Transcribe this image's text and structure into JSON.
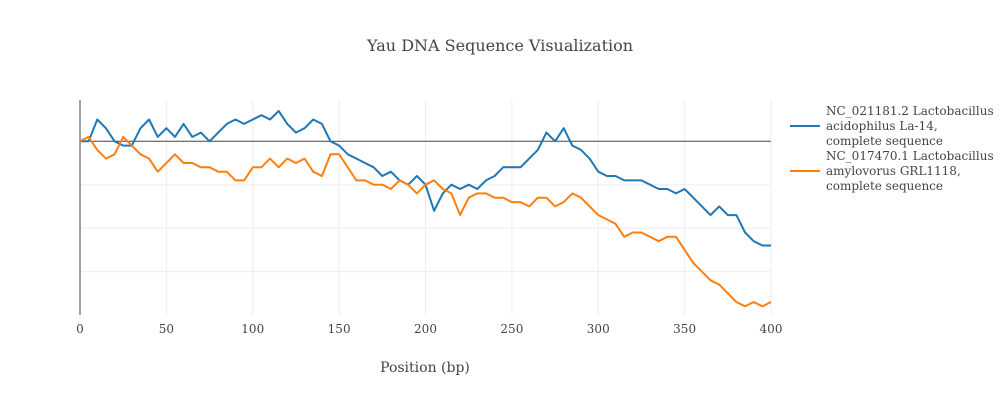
{
  "chart_data": {
    "type": "line",
    "title": "Yau DNA Sequence Visualization",
    "xlabel": "Position (bp)",
    "ylabel": "",
    "xlim": [
      0,
      400
    ],
    "ylim": [
      -40,
      9.5
    ],
    "x_ticks": [
      0,
      50,
      100,
      150,
      200,
      250,
      300,
      350,
      400
    ],
    "grid": true,
    "legend_position": "right",
    "series": [
      {
        "name": "NC_021181.2 Lactobacillus acidophilus La-14, complete sequence",
        "legend_lines": [
          "NC_021181.2 Lactobacillus",
          "acidophilus La-14,",
          "complete sequence"
        ],
        "color": "#1f77b4",
        "points": [
          [
            0,
            0
          ],
          [
            5,
            0
          ],
          [
            10,
            5
          ],
          [
            15,
            3
          ],
          [
            20,
            0
          ],
          [
            25,
            -1
          ],
          [
            30,
            -1
          ],
          [
            35,
            3
          ],
          [
            40,
            5
          ],
          [
            45,
            1
          ],
          [
            50,
            3
          ],
          [
            55,
            1
          ],
          [
            60,
            4
          ],
          [
            65,
            1
          ],
          [
            70,
            2
          ],
          [
            75,
            0
          ],
          [
            80,
            2
          ],
          [
            85,
            4
          ],
          [
            90,
            5
          ],
          [
            95,
            4
          ],
          [
            100,
            5
          ],
          [
            105,
            6
          ],
          [
            110,
            5
          ],
          [
            115,
            7
          ],
          [
            120,
            4
          ],
          [
            125,
            2
          ],
          [
            130,
            3
          ],
          [
            135,
            5
          ],
          [
            140,
            4
          ],
          [
            145,
            0
          ],
          [
            150,
            -1
          ],
          [
            155,
            -3
          ],
          [
            160,
            -4
          ],
          [
            165,
            -5
          ],
          [
            170,
            -6
          ],
          [
            175,
            -8
          ],
          [
            180,
            -7
          ],
          [
            185,
            -9
          ],
          [
            190,
            -10
          ],
          [
            195,
            -8
          ],
          [
            200,
            -10
          ],
          [
            205,
            -16
          ],
          [
            210,
            -12
          ],
          [
            215,
            -10
          ],
          [
            220,
            -11
          ],
          [
            225,
            -10
          ],
          [
            230,
            -11
          ],
          [
            235,
            -9
          ],
          [
            240,
            -8
          ],
          [
            245,
            -6
          ],
          [
            250,
            -6
          ],
          [
            255,
            -6
          ],
          [
            260,
            -4
          ],
          [
            265,
            -2
          ],
          [
            270,
            2
          ],
          [
            275,
            0
          ],
          [
            280,
            3
          ],
          [
            285,
            -1
          ],
          [
            290,
            -2
          ],
          [
            295,
            -4
          ],
          [
            300,
            -7
          ],
          [
            305,
            -8
          ],
          [
            310,
            -8
          ],
          [
            315,
            -9
          ],
          [
            320,
            -9
          ],
          [
            325,
            -9
          ],
          [
            330,
            -10
          ],
          [
            335,
            -11
          ],
          [
            340,
            -11
          ],
          [
            345,
            -12
          ],
          [
            350,
            -11
          ],
          [
            355,
            -13
          ],
          [
            360,
            -15
          ],
          [
            365,
            -17
          ],
          [
            370,
            -15
          ],
          [
            375,
            -17
          ],
          [
            380,
            -17
          ],
          [
            385,
            -21
          ],
          [
            390,
            -23
          ],
          [
            395,
            -24
          ],
          [
            400,
            -24
          ]
        ]
      },
      {
        "name": "NC_017470.1 Lactobacillus amylovorus GRL1118, complete sequence",
        "legend_lines": [
          "NC_017470.1 Lactobacillus",
          "amylovorus GRL1118,",
          "complete sequence"
        ],
        "color": "#ff7f0e",
        "points": [
          [
            0,
            0
          ],
          [
            5,
            1
          ],
          [
            10,
            -2
          ],
          [
            15,
            -4
          ],
          [
            20,
            -3
          ],
          [
            25,
            1
          ],
          [
            30,
            -1
          ],
          [
            35,
            -3
          ],
          [
            40,
            -4
          ],
          [
            45,
            -7
          ],
          [
            50,
            -5
          ],
          [
            55,
            -3
          ],
          [
            60,
            -5
          ],
          [
            65,
            -5
          ],
          [
            70,
            -6
          ],
          [
            75,
            -6
          ],
          [
            80,
            -7
          ],
          [
            85,
            -7
          ],
          [
            90,
            -9
          ],
          [
            95,
            -9
          ],
          [
            100,
            -6
          ],
          [
            105,
            -6
          ],
          [
            110,
            -4
          ],
          [
            115,
            -6
          ],
          [
            120,
            -4
          ],
          [
            125,
            -5
          ],
          [
            130,
            -4
          ],
          [
            135,
            -7
          ],
          [
            140,
            -8
          ],
          [
            145,
            -3
          ],
          [
            150,
            -3
          ],
          [
            155,
            -6
          ],
          [
            160,
            -9
          ],
          [
            165,
            -9
          ],
          [
            170,
            -10
          ],
          [
            175,
            -10
          ],
          [
            180,
            -11
          ],
          [
            185,
            -9
          ],
          [
            190,
            -10
          ],
          [
            195,
            -12
          ],
          [
            200,
            -10
          ],
          [
            205,
            -9
          ],
          [
            210,
            -11
          ],
          [
            215,
            -12
          ],
          [
            220,
            -17
          ],
          [
            225,
            -13
          ],
          [
            230,
            -12
          ],
          [
            235,
            -12
          ],
          [
            240,
            -13
          ],
          [
            245,
            -13
          ],
          [
            250,
            -14
          ],
          [
            255,
            -14
          ],
          [
            260,
            -15
          ],
          [
            265,
            -13
          ],
          [
            270,
            -13
          ],
          [
            275,
            -15
          ],
          [
            280,
            -14
          ],
          [
            285,
            -12
          ],
          [
            290,
            -13
          ],
          [
            295,
            -15
          ],
          [
            300,
            -17
          ],
          [
            305,
            -18
          ],
          [
            310,
            -19
          ],
          [
            315,
            -22
          ],
          [
            320,
            -21
          ],
          [
            325,
            -21
          ],
          [
            330,
            -22
          ],
          [
            335,
            -23
          ],
          [
            340,
            -22
          ],
          [
            345,
            -22
          ],
          [
            350,
            -25
          ],
          [
            355,
            -28
          ],
          [
            360,
            -30
          ],
          [
            365,
            -32
          ],
          [
            370,
            -33
          ],
          [
            375,
            -35
          ],
          [
            380,
            -37
          ],
          [
            385,
            -38
          ],
          [
            390,
            -37
          ],
          [
            395,
            -38
          ],
          [
            400,
            -37
          ]
        ]
      }
    ]
  }
}
